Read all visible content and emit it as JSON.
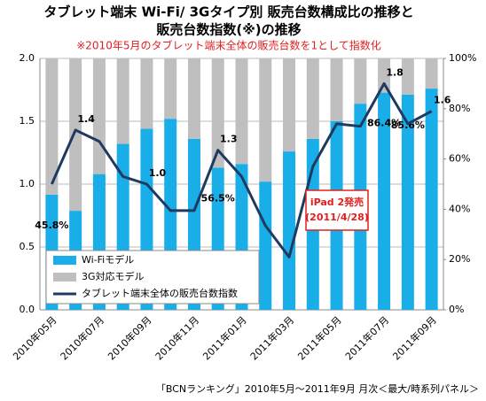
{
  "chart_data": {
    "type": "bar",
    "title": [
      "タブレット端末 Wi-Fi/ 3Gタイプ別 販売台数構成比の推移と",
      "販売台数指数(※)の推移"
    ],
    "subtitle": "※2010年5月のタブレット端末全体の販売台数を1として指数化",
    "footer": "「BCNランキング」2010年5月～2011年9月 月次＜最大/時系列パネル＞",
    "categories": [
      "2010年05月",
      null,
      "2010年07月",
      null,
      "2010年09月",
      null,
      "2010年11月",
      null,
      "2011年01月",
      null,
      "2011年03月",
      null,
      "2011年05月",
      null,
      "2011年07月",
      null,
      "2011年09月"
    ],
    "series": [
      {
        "name": "Wi-Fiモデル",
        "color": "#19aee8",
        "axis": "y2",
        "type": "bar",
        "values": [
          45.8,
          39.4,
          54,
          66,
          72,
          76,
          68,
          56.5,
          58,
          51,
          63,
          68,
          75,
          82,
          86.4,
          85.6,
          88
        ],
        "value_labels": [
          "45.8%",
          null,
          null,
          null,
          null,
          null,
          null,
          "56.5%",
          null,
          null,
          null,
          null,
          null,
          null,
          "86.4%",
          "85.6%",
          null
        ]
      },
      {
        "name": "3G対応モデル",
        "color": "#bfbfbf",
        "axis": "y2",
        "type": "bar",
        "values": [
          54.2,
          60.6,
          46,
          34,
          28,
          24,
          32,
          43.5,
          42,
          49,
          37,
          32,
          25,
          18,
          13.6,
          14.4,
          12
        ]
      },
      {
        "name": "タブレット端末全体の販売台数指数",
        "color": "#1f3a5f",
        "axis": "y",
        "type": "line",
        "values": [
          1.0,
          1.43,
          1.34,
          1.06,
          1.0,
          0.79,
          0.79,
          1.27,
          1.06,
          0.67,
          0.42,
          1.14,
          1.48,
          1.46,
          1.8,
          1.48,
          1.58
        ],
        "value_labels": [
          null,
          "1.4",
          null,
          null,
          "1.0",
          null,
          null,
          "1.3",
          null,
          null,
          null,
          null,
          null,
          null,
          "1.8",
          null,
          "1.6"
        ]
      }
    ],
    "annotations": [
      "iPad 2発売",
      "(2011/4/28)"
    ],
    "ylim": [
      0,
      2
    ],
    "yticks": [
      {
        "value": 0,
        "label": "0.0"
      },
      0.5,
      {
        "value": 1,
        "label": "1.0"
      },
      1.5,
      {
        "value": 2,
        "label": "2.0"
      }
    ],
    "y2lim": [
      0,
      100
    ],
    "y2ticks": [
      {
        "value": 0,
        "label": "0%"
      },
      {
        "value": 20,
        "label": "20%"
      },
      {
        "value": 40,
        "label": "40%"
      },
      {
        "value": 60,
        "label": "60%"
      },
      {
        "value": 80,
        "label": "80%"
      },
      {
        "value": 100,
        "label": "100%"
      }
    ],
    "grid": true,
    "legend": "lower left"
  }
}
